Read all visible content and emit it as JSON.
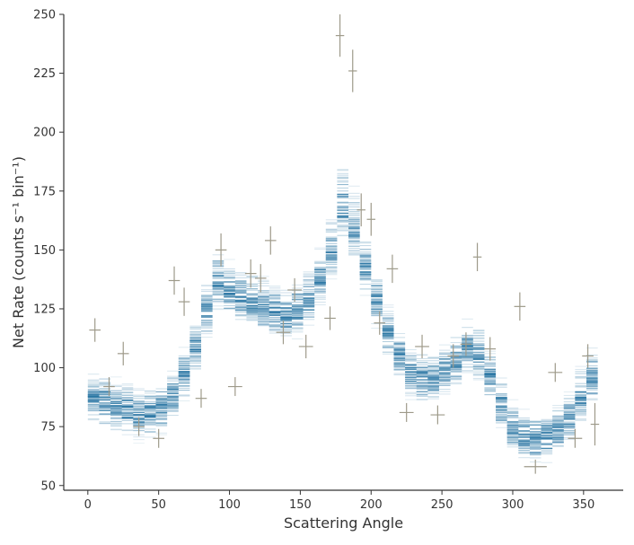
{
  "chart_data": {
    "type": "scatter",
    "title": "",
    "xlabel": "Scattering Angle",
    "ylabel": "Net Rate (counts s⁻¹ bin⁻¹)",
    "xlim": [
      -17,
      378
    ],
    "ylim": [
      48,
      250
    ],
    "xticks": [
      0,
      50,
      100,
      150,
      200,
      250,
      300,
      350
    ],
    "yticks": [
      50,
      75,
      100,
      125,
      150,
      175,
      200,
      225,
      250
    ],
    "grid": false,
    "colors": {
      "model_band": "#1f6f9f",
      "data_points": "#9e9a8a",
      "axis": "#333333"
    },
    "series": [
      {
        "kind": "model-band",
        "x": [
          0,
          10,
          20,
          30,
          40,
          50,
          60,
          70,
          80,
          90,
          100,
          110,
          120,
          130,
          140,
          150,
          160,
          170,
          180,
          185,
          190,
          200,
          210,
          220,
          230,
          240,
          250,
          260,
          270,
          280,
          290,
          300,
          310,
          320,
          330,
          340,
          350,
          360
        ],
        "y": [
          88,
          86,
          84,
          82,
          80,
          82,
          88,
          100,
          115,
          137,
          132,
          128,
          126,
          124,
          122,
          124,
          132,
          145,
          168,
          165,
          155,
          135,
          118,
          105,
          96,
          95,
          98,
          102,
          110,
          102,
          88,
          75,
          70,
          70,
          72,
          78,
          90,
          98
        ],
        "spread_upper": [
          10,
          10,
          10,
          10,
          10,
          10,
          10,
          10,
          10,
          13,
          12,
          12,
          12,
          12,
          12,
          12,
          12,
          12,
          18,
          18,
          15,
          12,
          10,
          10,
          10,
          10,
          10,
          10,
          12,
          10,
          10,
          10,
          10,
          10,
          10,
          10,
          12,
          14
        ],
        "spread_lower": [
          12,
          10,
          10,
          10,
          10,
          10,
          10,
          10,
          10,
          10,
          10,
          10,
          10,
          10,
          10,
          10,
          10,
          10,
          12,
          12,
          12,
          10,
          10,
          10,
          10,
          10,
          10,
          10,
          10,
          10,
          10,
          10,
          10,
          10,
          10,
          10,
          10,
          10
        ]
      },
      {
        "kind": "data-points",
        "x": [
          5,
          15,
          25,
          36,
          50,
          61,
          68,
          80,
          94,
          104,
          115,
          122,
          129,
          138,
          146,
          154,
          171,
          178,
          187,
          193,
          200,
          206,
          215,
          225,
          236,
          247,
          258,
          267,
          275,
          284,
          305,
          316,
          330,
          344,
          353,
          358
        ],
        "y": [
          116,
          92,
          106,
          75,
          70,
          137,
          128,
          87,
          150,
          92,
          140,
          138,
          154,
          115,
          133,
          109,
          121,
          241,
          226,
          167,
          163,
          119,
          142,
          81,
          109,
          80,
          105,
          110,
          147,
          108,
          126,
          58,
          98,
          70,
          105,
          76
        ],
        "yerr": [
          5,
          4,
          5,
          4,
          4,
          6,
          6,
          4,
          7,
          4,
          6,
          6,
          6,
          5,
          5,
          5,
          5,
          9,
          9,
          7,
          7,
          5,
          6,
          4,
          5,
          4,
          5,
          5,
          6,
          5,
          6,
          3,
          4,
          4,
          5,
          9
        ],
        "xerr": [
          4,
          4,
          4,
          4,
          4,
          4,
          4,
          4,
          4,
          5,
          4,
          4,
          4,
          5,
          5,
          5,
          4,
          3,
          3,
          3,
          3,
          4,
          4,
          5,
          5,
          5,
          4,
          4,
          3,
          4,
          4,
          8,
          5,
          5,
          4,
          3
        ]
      }
    ]
  }
}
